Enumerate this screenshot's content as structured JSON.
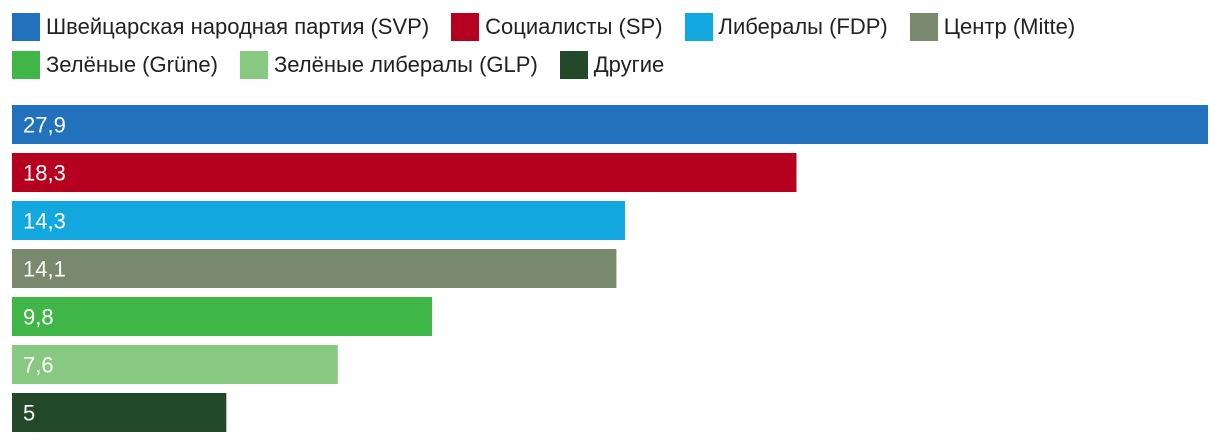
{
  "chart_data": {
    "type": "bar",
    "orientation": "horizontal",
    "legend_placement": "top",
    "grid": false,
    "categories": [
      "Швейцарская народная партия (SVP)",
      "Социалисты (SP)",
      "Либералы (FDP)",
      "Центр (Mitte)",
      "Зелёные (Grüne)",
      "Зелёные либералы (GLP)",
      "Другие"
    ],
    "values": [
      27.9,
      18.3,
      14.3,
      14.1,
      9.8,
      7.6,
      5
    ],
    "value_labels": [
      "27,9",
      "18,3",
      "14,3",
      "14,1",
      "9,8",
      "7,6",
      "5"
    ],
    "colors": [
      "#2171bd",
      "#b5001f",
      "#13a7e0",
      "#78896d",
      "#41b648",
      "#88c982",
      "#22492a"
    ],
    "xlim": [
      0,
      27.9
    ]
  }
}
